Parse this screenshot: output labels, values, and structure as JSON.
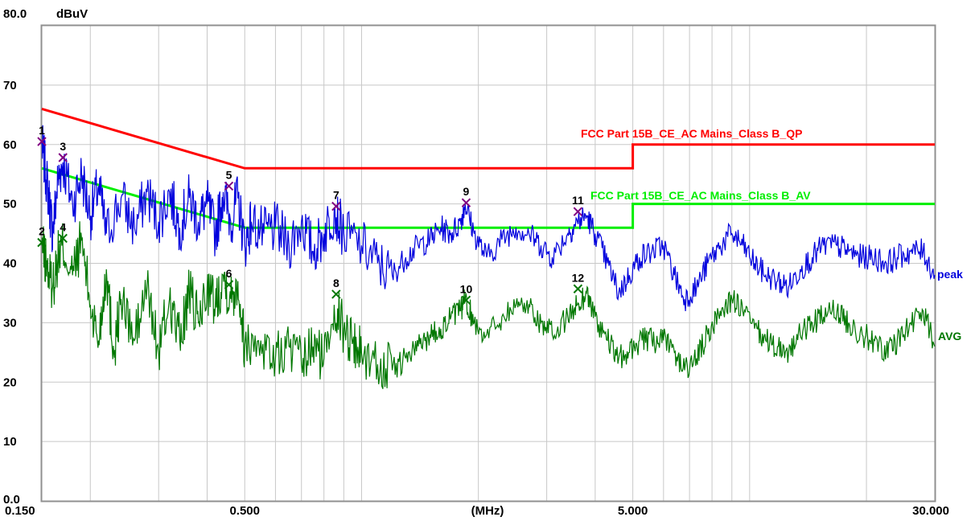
{
  "chart_data": {
    "type": "line",
    "ylabel": "dBuV",
    "xlabel": "(MHz)",
    "x_scale": "log",
    "xlim": [
      0.15,
      30.0
    ],
    "ylim": [
      0,
      80
    ],
    "grid": true,
    "yticks": [
      {
        "value": 0,
        "label": "0.0"
      },
      {
        "value": 10,
        "label": "10"
      },
      {
        "value": 20,
        "label": "20"
      },
      {
        "value": 30,
        "label": "30"
      },
      {
        "value": 40,
        "label": "40"
      },
      {
        "value": 50,
        "label": "50"
      },
      {
        "value": 60,
        "label": "60"
      },
      {
        "value": 70,
        "label": "70"
      },
      {
        "value": 80,
        "label": "80.0"
      }
    ],
    "xticks": [
      {
        "value": 0.15,
        "label": "0.150"
      },
      {
        "value": 0.5,
        "label": "0.500"
      },
      {
        "value": 5.0,
        "label": "5.000"
      },
      {
        "value": 30.0,
        "label": "30.000"
      }
    ],
    "colors": {
      "qp": "#ff0000",
      "av": "#00ee00",
      "peak": "#0000dd",
      "avg": "#007700",
      "marker_peak": "#800080",
      "marker_avg": "#007700",
      "grid": "#c8c8c8",
      "frame": "#909090"
    },
    "limits": [
      {
        "name": "FCC Part 15B_CE_AC Mains_Class B_QP",
        "color": "#ff0000",
        "points": [
          [
            0.15,
            66
          ],
          [
            0.5,
            56
          ],
          [
            5.0,
            56
          ],
          [
            5.0,
            60
          ],
          [
            30.0,
            60
          ]
        ]
      },
      {
        "name": "FCC Part 15B_CE_AC Mains_Class B_AV",
        "color": "#00ee00",
        "points": [
          [
            0.15,
            56
          ],
          [
            0.5,
            46
          ],
          [
            5.0,
            46
          ],
          [
            5.0,
            50
          ],
          [
            30.0,
            50
          ]
        ]
      }
    ],
    "series": [
      {
        "name": "peak",
        "color": "#0000dd",
        "points": [
          [
            0.15,
            60
          ],
          [
            0.153,
            56
          ],
          [
            0.157,
            50
          ],
          [
            0.16,
            45
          ],
          [
            0.165,
            54
          ],
          [
            0.17,
            57
          ],
          [
            0.18,
            50
          ],
          [
            0.19,
            55
          ],
          [
            0.2,
            48
          ],
          [
            0.21,
            53
          ],
          [
            0.22,
            45
          ],
          [
            0.24,
            51
          ],
          [
            0.26,
            46
          ],
          [
            0.28,
            52
          ],
          [
            0.3,
            47
          ],
          [
            0.32,
            52
          ],
          [
            0.34,
            46
          ],
          [
            0.36,
            51
          ],
          [
            0.38,
            47
          ],
          [
            0.4,
            50
          ],
          [
            0.42,
            45
          ],
          [
            0.44,
            52
          ],
          [
            0.46,
            47
          ],
          [
            0.48,
            51
          ],
          [
            0.5,
            43
          ],
          [
            0.52,
            47
          ],
          [
            0.56,
            45
          ],
          [
            0.6,
            46
          ],
          [
            0.65,
            43
          ],
          [
            0.7,
            47
          ],
          [
            0.75,
            42
          ],
          [
            0.8,
            45
          ],
          [
            0.85,
            49
          ],
          [
            0.9,
            45
          ],
          [
            1.0,
            43
          ],
          [
            1.1,
            40
          ],
          [
            1.2,
            38
          ],
          [
            1.3,
            41
          ],
          [
            1.4,
            43
          ],
          [
            1.5,
            44
          ],
          [
            1.6,
            46
          ],
          [
            1.7,
            45
          ],
          [
            1.8,
            47
          ],
          [
            1.85,
            50
          ],
          [
            1.95,
            45
          ],
          [
            2.1,
            41
          ],
          [
            2.3,
            44
          ],
          [
            2.5,
            46
          ],
          [
            2.7,
            45
          ],
          [
            2.9,
            43
          ],
          [
            3.1,
            41
          ],
          [
            3.4,
            45
          ],
          [
            3.6,
            47
          ],
          [
            3.8,
            48
          ],
          [
            4.0,
            45
          ],
          [
            4.3,
            40
          ],
          [
            4.6,
            35
          ],
          [
            4.9,
            38
          ],
          [
            5.2,
            41
          ],
          [
            5.6,
            42
          ],
          [
            6.0,
            43
          ],
          [
            6.4,
            38
          ],
          [
            6.8,
            34
          ],
          [
            7.3,
            36
          ],
          [
            7.8,
            40
          ],
          [
            8.4,
            43
          ],
          [
            9.0,
            45
          ],
          [
            9.6,
            43
          ],
          [
            10.3,
            40
          ],
          [
            11.0,
            38
          ],
          [
            11.8,
            37
          ],
          [
            12.6,
            36
          ],
          [
            13.5,
            39
          ],
          [
            14.5,
            41
          ],
          [
            15.5,
            43
          ],
          [
            16.8,
            43
          ],
          [
            18.0,
            42
          ],
          [
            19.5,
            41
          ],
          [
            21.0,
            41
          ],
          [
            22.5,
            40
          ],
          [
            24.0,
            41
          ],
          [
            26.0,
            42
          ],
          [
            28.0,
            42
          ],
          [
            30.0,
            38
          ]
        ]
      },
      {
        "name": "AVG",
        "color": "#007700",
        "points": [
          [
            0.15,
            43
          ],
          [
            0.155,
            39
          ],
          [
            0.16,
            36
          ],
          [
            0.165,
            41
          ],
          [
            0.17,
            43
          ],
          [
            0.18,
            38
          ],
          [
            0.19,
            44
          ],
          [
            0.2,
            33
          ],
          [
            0.21,
            27
          ],
          [
            0.22,
            39
          ],
          [
            0.23,
            25
          ],
          [
            0.24,
            34
          ],
          [
            0.26,
            27
          ],
          [
            0.28,
            36
          ],
          [
            0.3,
            25
          ],
          [
            0.32,
            34
          ],
          [
            0.34,
            27
          ],
          [
            0.36,
            35
          ],
          [
            0.38,
            30
          ],
          [
            0.4,
            36
          ],
          [
            0.42,
            33
          ],
          [
            0.44,
            38
          ],
          [
            0.46,
            34
          ],
          [
            0.48,
            37
          ],
          [
            0.5,
            26
          ],
          [
            0.55,
            27
          ],
          [
            0.6,
            24
          ],
          [
            0.65,
            26
          ],
          [
            0.7,
            23
          ],
          [
            0.75,
            26
          ],
          [
            0.8,
            24
          ],
          [
            0.85,
            33
          ],
          [
            0.9,
            29
          ],
          [
            0.95,
            27
          ],
          [
            1.0,
            25
          ],
          [
            1.1,
            23
          ],
          [
            1.2,
            22
          ],
          [
            1.3,
            24
          ],
          [
            1.4,
            26
          ],
          [
            1.5,
            28
          ],
          [
            1.6,
            29
          ],
          [
            1.7,
            31
          ],
          [
            1.8,
            32
          ],
          [
            1.85,
            34
          ],
          [
            1.95,
            30
          ],
          [
            2.1,
            28
          ],
          [
            2.3,
            31
          ],
          [
            2.5,
            33
          ],
          [
            2.7,
            33
          ],
          [
            2.9,
            30
          ],
          [
            3.1,
            28
          ],
          [
            3.4,
            31
          ],
          [
            3.6,
            33
          ],
          [
            3.8,
            35
          ],
          [
            4.0,
            31
          ],
          [
            4.3,
            27
          ],
          [
            4.6,
            24
          ],
          [
            4.9,
            25
          ],
          [
            5.2,
            27
          ],
          [
            5.6,
            27
          ],
          [
            6.0,
            27
          ],
          [
            6.4,
            25
          ],
          [
            6.8,
            22
          ],
          [
            7.3,
            24
          ],
          [
            7.8,
            28
          ],
          [
            8.4,
            32
          ],
          [
            9.0,
            34
          ],
          [
            9.6,
            32
          ],
          [
            10.3,
            29
          ],
          [
            11.0,
            27
          ],
          [
            11.8,
            26
          ],
          [
            12.6,
            25
          ],
          [
            13.5,
            28
          ],
          [
            14.5,
            30
          ],
          [
            15.5,
            31
          ],
          [
            16.8,
            32
          ],
          [
            18.0,
            30
          ],
          [
            19.5,
            28
          ],
          [
            21.0,
            27
          ],
          [
            22.5,
            25
          ],
          [
            24.0,
            27
          ],
          [
            26.0,
            30
          ],
          [
            28.0,
            32
          ],
          [
            30.0,
            26
          ]
        ]
      }
    ],
    "markers": [
      {
        "label": "1",
        "x": 0.15,
        "y": 60.5,
        "group": "peak"
      },
      {
        "label": "2",
        "x": 0.15,
        "y": 43.5,
        "group": "avg"
      },
      {
        "label": "3",
        "x": 0.17,
        "y": 57.8,
        "group": "peak"
      },
      {
        "label": "4",
        "x": 0.17,
        "y": 44.2,
        "group": "avg"
      },
      {
        "label": "5",
        "x": 0.455,
        "y": 53.0,
        "group": "peak"
      },
      {
        "label": "6",
        "x": 0.455,
        "y": 36.4,
        "group": "avg"
      },
      {
        "label": "7",
        "x": 0.86,
        "y": 49.6,
        "group": "peak"
      },
      {
        "label": "8",
        "x": 0.86,
        "y": 34.8,
        "group": "avg"
      },
      {
        "label": "9",
        "x": 1.86,
        "y": 50.2,
        "group": "peak"
      },
      {
        "label": "10",
        "x": 1.86,
        "y": 33.8,
        "group": "avg"
      },
      {
        "label": "11",
        "x": 3.61,
        "y": 48.7,
        "group": "peak"
      },
      {
        "label": "12",
        "x": 3.61,
        "y": 35.7,
        "group": "avg"
      }
    ]
  }
}
